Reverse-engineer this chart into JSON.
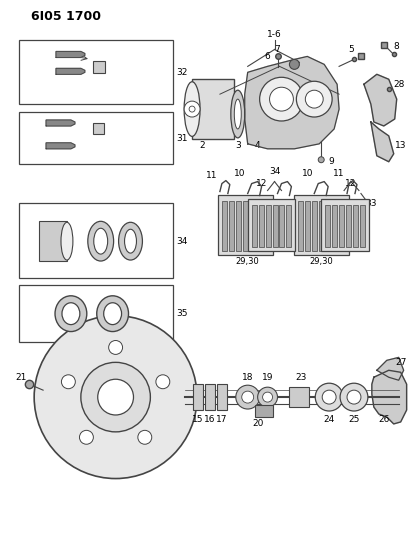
{
  "title": "6I05 1700",
  "bg_color": "#ffffff",
  "line_color": "#444444",
  "text_color": "#000000",
  "fig_width": 4.1,
  "fig_height": 5.33,
  "dpi": 100
}
